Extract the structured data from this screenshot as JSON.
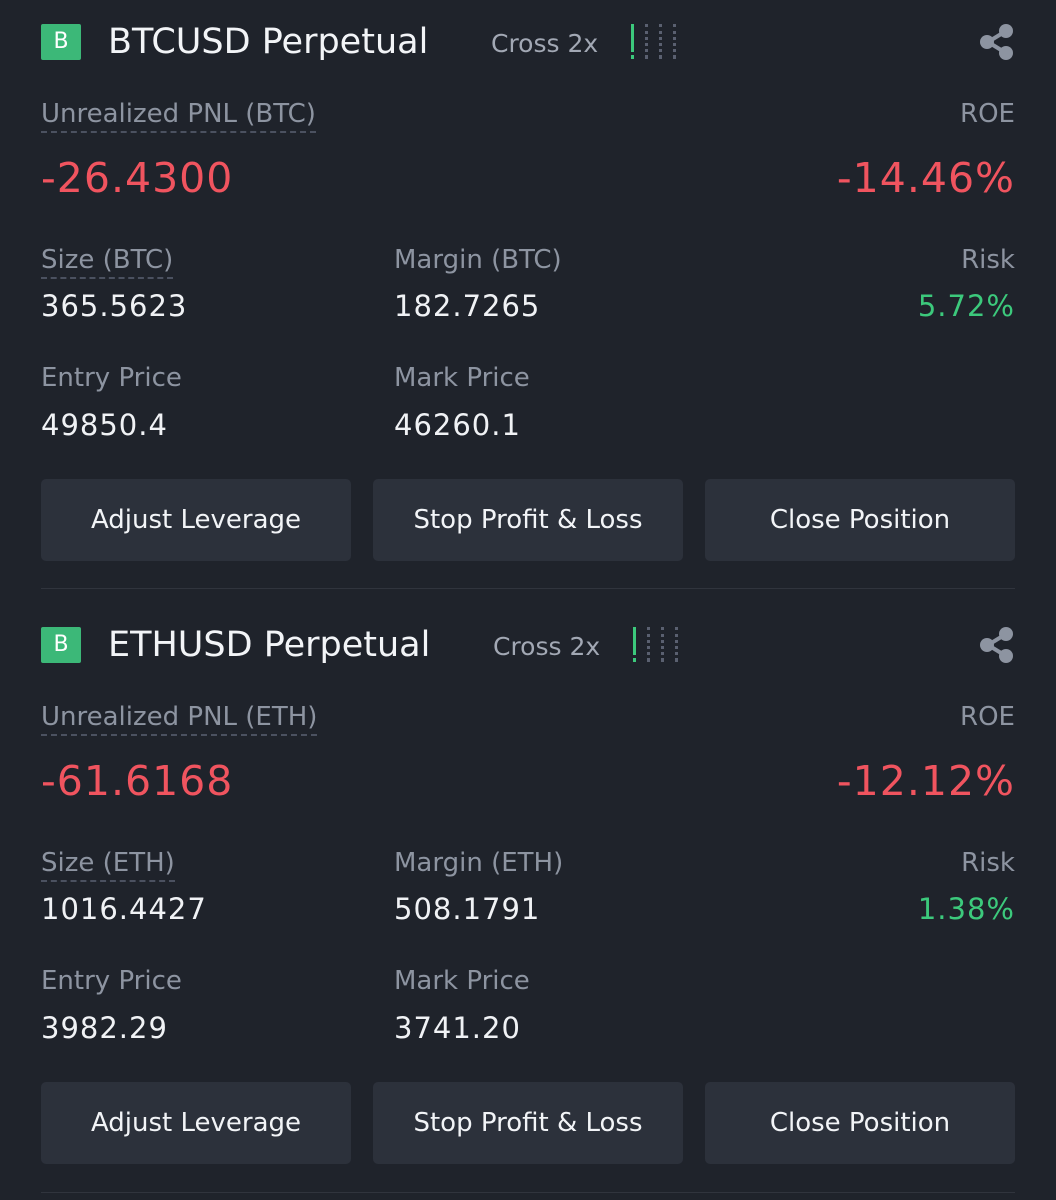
{
  "positions": [
    {
      "badge": "B",
      "symbol": "BTCUSD Perpetual",
      "margin_mode": "Cross 2x",
      "risk_level": 1,
      "risk_level_max": 4,
      "pnl_label": "Unrealized PNL (BTC)",
      "pnl_value": "-26.4300",
      "roe_label": "ROE",
      "roe_value": "-14.46%",
      "size_label": "Size (BTC)",
      "size_value": "365.5623",
      "margin_label": "Margin (BTC)",
      "margin_value": "182.7265",
      "risk_label": "Risk",
      "risk_value": "5.72%",
      "entry_label": "Entry Price",
      "entry_value": "49850.4",
      "mark_label": "Mark Price",
      "mark_value": "46260.1",
      "buttons": {
        "adjust": "Adjust Leverage",
        "stop": "Stop Profit & Loss",
        "close": "Close Position"
      }
    },
    {
      "badge": "B",
      "symbol": "ETHUSD Perpetual",
      "margin_mode": "Cross 2x",
      "risk_level": 1,
      "risk_level_max": 4,
      "pnl_label": "Unrealized PNL (ETH)",
      "pnl_value": "-61.6168",
      "roe_label": "ROE",
      "roe_value": "-12.12%",
      "size_label": "Size (ETH)",
      "size_value": "1016.4427",
      "margin_label": "Margin (ETH)",
      "margin_value": "508.1791",
      "risk_label": "Risk",
      "risk_value": "1.38%",
      "entry_label": "Entry Price",
      "entry_value": "3982.29",
      "mark_label": "Mark Price",
      "mark_value": "3741.20",
      "buttons": {
        "adjust": "Adjust Leverage",
        "stop": "Stop Profit & Loss",
        "close": "Close Position"
      }
    }
  ],
  "colors": {
    "background": "#1f232b",
    "loss": "#f0545f",
    "gain": "#3cc97c",
    "badge": "#3cb878",
    "button": "#2c313b",
    "muted": "#8d94a1"
  },
  "icons": {
    "share": "share-icon",
    "risk": "risk-level-icon"
  }
}
